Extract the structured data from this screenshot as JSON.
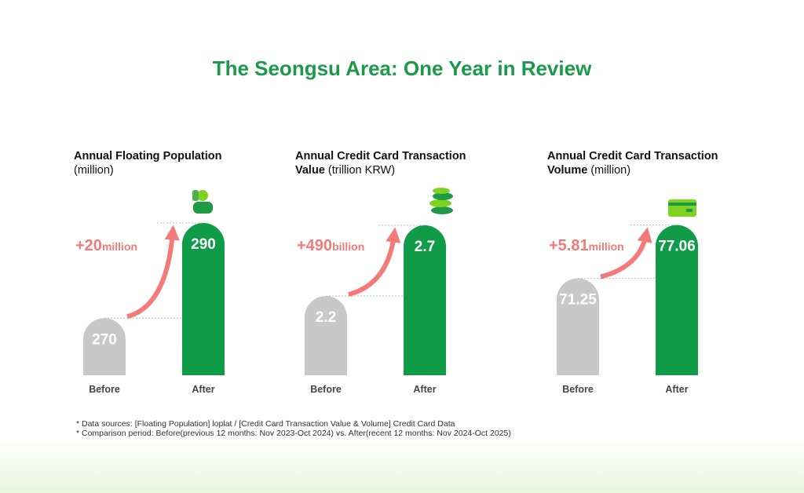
{
  "title": "The Seongsu Area: One Year in Review",
  "chart_data": [
    {
      "type": "bar",
      "title": "Annual Floating Population",
      "unit": "(million)",
      "categories": [
        "Before",
        "After"
      ],
      "values": [
        270,
        290
      ],
      "colors": [
        "#c8c8c8",
        "#0f9b48"
      ],
      "ylim": [
        258,
        291
      ],
      "annotation": {
        "value": "+20",
        "unit": "million"
      }
    },
    {
      "type": "bar",
      "title": "Annual Credit Card Transaction Value",
      "unit": "(trillion KRW)",
      "categories": [
        "Before",
        "After"
      ],
      "values": [
        2.2,
        2.7
      ],
      "colors": [
        "#c8c8c8",
        "#0f9b48"
      ],
      "ylim": [
        1.64,
        2.75
      ],
      "annotation": {
        "value": "+490",
        "unit": "billion"
      }
    },
    {
      "type": "bar",
      "title": "Annual Credit Card Transaction Volume",
      "unit": "(million)",
      "categories": [
        "Before",
        "After"
      ],
      "values": [
        71.25,
        77.06
      ],
      "colors": [
        "#c8c8c8",
        "#0f9b48"
      ],
      "ylim": [
        60.7,
        77.8
      ],
      "annotation": {
        "value": "+5.81",
        "unit": "million"
      }
    }
  ],
  "notes": [
    "* Data sources: [Floating Population] loplat / [Credit Card Transaction Value & Volume] Credit Card Data",
    "* Comparison period: Before(previous 12 months: Nov 2023-Oct 2024) vs. After(recent 12 months: Nov 2024-Oct 2025)"
  ]
}
